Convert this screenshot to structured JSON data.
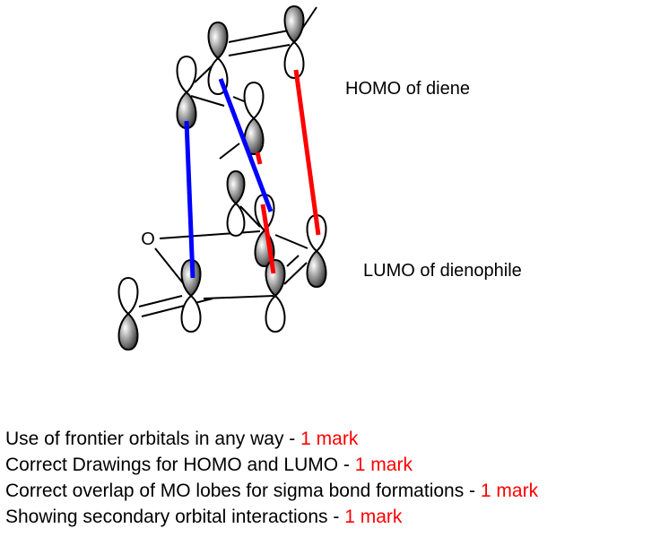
{
  "labels": {
    "homo": "HOMO of diene",
    "lumo": "LUMO of dienophile",
    "oxygen": "O"
  },
  "criteria": [
    {
      "text": "Use of frontier orbitals in any way - ",
      "mark": "1 mark"
    },
    {
      "text": "Correct Drawings for HOMO and LUMO - ",
      "mark": "1 mark"
    },
    {
      "text": "Correct overlap of MO lobes for sigma bond formations - ",
      "mark": "1 mark"
    },
    {
      "text": "Showing secondary orbital interactions - ",
      "mark": "1 mark"
    }
  ],
  "colors": {
    "primary_interaction": "#0000ff",
    "secondary_interaction": "#ff0000",
    "mark_text": "#ff0000"
  }
}
